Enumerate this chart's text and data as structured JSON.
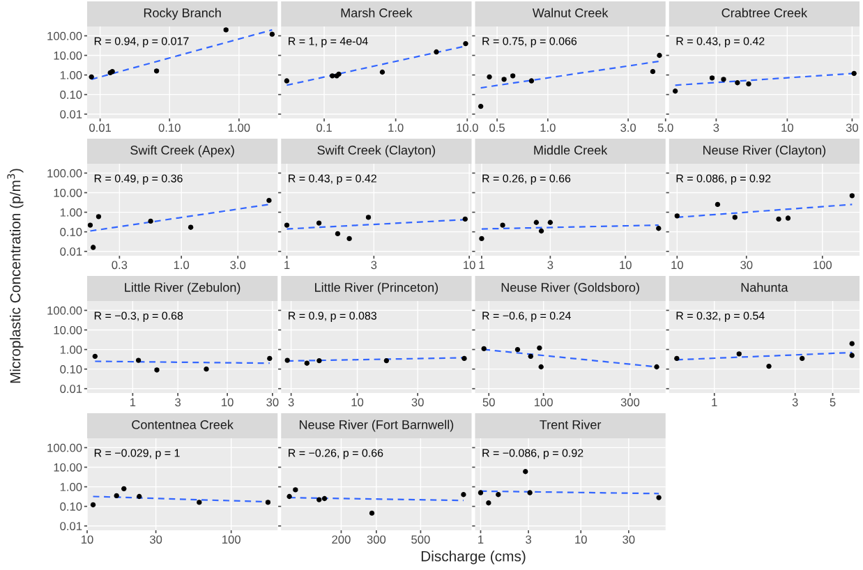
{
  "chart_data": [
    {
      "type": "scatter",
      "title": "Rocky Branch",
      "ylabel": "Microplastic Concentration (p/m$^{3}$)",
      "annotations": [
        "R = 0.94, p = 0.017"
      ],
      "log": "xy",
      "grid": true,
      "xlim": [
        0.0065,
        3.6
      ],
      "xticks": [
        {
          "value": 0.01,
          "label": "0.01"
        },
        {
          "value": 0.1,
          "label": "0.10"
        },
        {
          "value": 1,
          "label": "1.00"
        }
      ],
      "ylim": [
        0.006,
        300
      ],
      "yticks": [
        {
          "value": 0.01,
          "label": "0.01"
        },
        {
          "value": 0.1,
          "label": "0.10"
        },
        {
          "value": 1,
          "label": "1.00"
        },
        {
          "value": 10,
          "label": "10.00"
        },
        {
          "value": 100,
          "label": "100.00"
        }
      ],
      "series": [
        {
          "type": "scatter",
          "color": "#000000",
          "marker": "circle",
          "x": [
            0.0075,
            0.014,
            0.015,
            0.065,
            0.65,
            3.0
          ],
          "values": [
            0.8,
            1.3,
            1.5,
            1.6,
            200,
            120
          ]
        },
        {
          "type": "line",
          "color": "#3366ff",
          "line_style": "dashed",
          "x": [
            0.0075,
            3.0
          ],
          "values": [
            0.6,
            200
          ]
        }
      ]
    },
    {
      "type": "scatter",
      "title": "Marsh Creek",
      "annotations": [
        "R = 1, p = 4e-04"
      ],
      "log": "xy",
      "grid": true,
      "tick_labels": "x",
      "xlim": [
        0.025,
        11.5
      ],
      "xticks": [
        {
          "value": 0.1,
          "label": "0.1"
        },
        {
          "value": 1,
          "label": "1.0"
        },
        {
          "value": 10,
          "label": "10.0"
        }
      ],
      "ylim": [
        0.006,
        300
      ],
      "yticks": [
        0.01,
        0.1,
        1,
        10,
        100
      ],
      "series": [
        {
          "type": "scatter",
          "color": "#000000",
          "marker": "circle",
          "x": [
            0.03,
            0.13,
            0.15,
            0.16,
            0.65,
            3.7,
            9.5
          ],
          "values": [
            0.5,
            0.9,
            0.9,
            1.1,
            1.4,
            15,
            40
          ]
        },
        {
          "type": "line",
          "color": "#3366ff",
          "line_style": "dashed",
          "x": [
            0.03,
            9.5
          ],
          "values": [
            0.3,
            30
          ]
        }
      ]
    },
    {
      "type": "scatter",
      "title": "Walnut Creek",
      "annotations": [
        "R = 0.75, p = 0.066"
      ],
      "log": "xy",
      "grid": true,
      "tick_labels": "x",
      "xlim": [
        0.37,
        5.0
      ],
      "xticks": [
        {
          "value": 0.5,
          "label": "0.5"
        },
        {
          "value": 1,
          "label": "1.0"
        },
        {
          "value": 3,
          "label": "3.0"
        },
        {
          "value": 5,
          "label": "5.0"
        }
      ],
      "ylim": [
        0.006,
        300
      ],
      "yticks": [
        0.01,
        0.1,
        1,
        10,
        100
      ],
      "series": [
        {
          "type": "scatter",
          "color": "#000000",
          "marker": "circle",
          "x": [
            0.4,
            0.45,
            0.55,
            0.62,
            0.8,
            4.2,
            4.6
          ],
          "values": [
            0.025,
            0.8,
            0.6,
            0.9,
            0.5,
            1.5,
            10
          ]
        },
        {
          "type": "line",
          "color": "#3366ff",
          "line_style": "dashed",
          "x": [
            0.4,
            4.6
          ],
          "values": [
            0.22,
            5
          ]
        }
      ]
    },
    {
      "type": "scatter",
      "title": "Crabtree Creek",
      "annotations": [
        "R = 0.43, p = 0.42"
      ],
      "log": "xy",
      "grid": true,
      "tick_labels": "x",
      "xlim": [
        1.35,
        34
      ],
      "xticks": [
        3,
        10,
        30
      ],
      "ylim": [
        0.006,
        300
      ],
      "yticks": [
        0.01,
        0.1,
        1,
        10,
        100
      ],
      "series": [
        {
          "type": "scatter",
          "color": "#000000",
          "marker": "circle",
          "x": [
            1.5,
            2.8,
            3.4,
            4.3,
            5.2,
            31
          ],
          "values": [
            0.15,
            0.7,
            0.6,
            0.4,
            0.35,
            1.2
          ]
        },
        {
          "type": "line",
          "color": "#3366ff",
          "line_style": "dashed",
          "x": [
            1.5,
            31
          ],
          "values": [
            0.3,
            1.2
          ]
        }
      ]
    },
    {
      "type": "scatter",
      "title": "Swift Creek (Apex)",
      "annotations": [
        "R = 0.49, p = 0.36"
      ],
      "log": "xy",
      "grid": true,
      "xlim": [
        0.16,
        6.5
      ],
      "xticks": [
        {
          "value": 0.3,
          "label": "0.3"
        },
        {
          "value": 1,
          "label": "1.0"
        },
        {
          "value": 3,
          "label": "3.0"
        }
      ],
      "ylim": [
        0.006,
        300
      ],
      "yticks": [
        {
          "value": 0.01,
          "label": "0.01"
        },
        {
          "value": 0.1,
          "label": "0.10"
        },
        {
          "value": 1,
          "label": "1.00"
        },
        {
          "value": 10,
          "label": "10.00"
        },
        {
          "value": 100,
          "label": "100.00"
        }
      ],
      "series": [
        {
          "type": "scatter",
          "color": "#000000",
          "marker": "circle",
          "x": [
            0.17,
            0.18,
            0.2,
            0.55,
            1.2,
            5.5
          ],
          "values": [
            0.22,
            0.016,
            0.6,
            0.35,
            0.17,
            4
          ]
        },
        {
          "type": "line",
          "color": "#3366ff",
          "line_style": "dashed",
          "x": [
            0.17,
            5.5
          ],
          "values": [
            0.11,
            2.5
          ]
        }
      ]
    },
    {
      "type": "scatter",
      "title": "Swift Creek (Clayton)",
      "annotations": [
        "R = 0.43, p = 0.42"
      ],
      "log": "xy",
      "grid": true,
      "tick_labels": "x",
      "xlim": [
        0.93,
        10.3
      ],
      "xticks": [
        1,
        3,
        10
      ],
      "ylim": [
        0.006,
        300
      ],
      "yticks": [
        0.01,
        0.1,
        1,
        10,
        100
      ],
      "series": [
        {
          "type": "scatter",
          "color": "#000000",
          "marker": "circle",
          "x": [
            1.0,
            1.5,
            1.9,
            2.2,
            2.8,
            9.5
          ],
          "values": [
            0.22,
            0.28,
            0.08,
            0.045,
            0.55,
            0.45
          ]
        },
        {
          "type": "line",
          "color": "#3366ff",
          "line_style": "dashed",
          "x": [
            1.0,
            9.5
          ],
          "values": [
            0.14,
            0.42
          ]
        }
      ]
    },
    {
      "type": "scatter",
      "title": "Middle Creek",
      "annotations": [
        "R = 0.26, p = 0.66"
      ],
      "log": "xy",
      "grid": true,
      "tick_labels": "x",
      "xlim": [
        0.9,
        19
      ],
      "xticks": [
        1,
        3,
        10
      ],
      "ylim": [
        0.006,
        300
      ],
      "yticks": [
        0.01,
        0.1,
        1,
        10,
        100
      ],
      "series": [
        {
          "type": "scatter",
          "color": "#000000",
          "marker": "circle",
          "x": [
            1.0,
            1.4,
            2.4,
            2.6,
            3.0,
            17
          ],
          "values": [
            0.045,
            0.22,
            0.3,
            0.11,
            0.3,
            0.15
          ]
        },
        {
          "type": "line",
          "color": "#3366ff",
          "line_style": "dashed",
          "x": [
            1.0,
            17
          ],
          "values": [
            0.14,
            0.22
          ]
        }
      ]
    },
    {
      "type": "scatter",
      "title": "Neuse River (Clayton)",
      "annotations": [
        "R = 0.086, p = 0.92"
      ],
      "log": "xy",
      "grid": true,
      "tick_labels": "x",
      "xlim": [
        8.8,
        180
      ],
      "xticks": [
        10,
        30,
        100
      ],
      "ylim": [
        0.006,
        300
      ],
      "yticks": [
        0.01,
        0.1,
        1,
        10,
        100
      ],
      "series": [
        {
          "type": "scatter",
          "color": "#000000",
          "marker": "circle",
          "x": [
            10,
            19,
            25,
            50,
            58,
            160
          ],
          "values": [
            0.65,
            2.5,
            0.55,
            0.45,
            0.5,
            7
          ]
        },
        {
          "type": "line",
          "color": "#3366ff",
          "line_style": "dashed",
          "x": [
            10,
            160
          ],
          "values": [
            0.55,
            2.5
          ]
        }
      ]
    },
    {
      "type": "scatter",
      "title": "Little River (Zebulon)",
      "annotations": [
        "R = −0.3, p = 0.68"
      ],
      "log": "xy",
      "grid": true,
      "xlim": [
        0.33,
        34
      ],
      "xticks": [
        1,
        3,
        10,
        30
      ],
      "ylim": [
        0.006,
        300
      ],
      "yticks": [
        {
          "value": 0.01,
          "label": "0.01"
        },
        {
          "value": 0.1,
          "label": "0.10"
        },
        {
          "value": 1,
          "label": "1.00"
        },
        {
          "value": 10,
          "label": "10.00"
        },
        {
          "value": 100,
          "label": "100.00"
        }
      ],
      "series": [
        {
          "type": "scatter",
          "color": "#000000",
          "marker": "circle",
          "x": [
            0.4,
            1.15,
            1.8,
            6,
            28
          ],
          "values": [
            0.45,
            0.28,
            0.09,
            0.1,
            0.35
          ]
        },
        {
          "type": "line",
          "color": "#3366ff",
          "line_style": "dashed",
          "x": [
            0.4,
            28
          ],
          "values": [
            0.25,
            0.2
          ]
        }
      ]
    },
    {
      "type": "scatter",
      "title": "Little River (Princeton)",
      "annotations": [
        "R = 0.9, p = 0.083"
      ],
      "log": "xy",
      "grid": true,
      "tick_labels": "x",
      "xlim": [
        2.5,
        80
      ],
      "xticks": [
        3,
        10,
        30
      ],
      "ylim": [
        0.006,
        300
      ],
      "yticks": [
        0.01,
        0.1,
        1,
        10,
        100
      ],
      "series": [
        {
          "type": "scatter",
          "color": "#000000",
          "marker": "circle",
          "x": [
            2.8,
            4,
            5,
            17,
            70
          ],
          "values": [
            0.28,
            0.2,
            0.27,
            0.27,
            0.35
          ]
        },
        {
          "type": "line",
          "color": "#3366ff",
          "line_style": "dashed",
          "x": [
            2.8,
            70
          ],
          "values": [
            0.26,
            0.38
          ]
        }
      ]
    },
    {
      "type": "scatter",
      "title": "Neuse River (Goldsboro)",
      "annotations": [
        "R = −0.6, p = 0.24"
      ],
      "log": "xy",
      "grid": true,
      "tick_labels": "x",
      "xlim": [
        42,
        470
      ],
      "xticks": [
        50,
        100,
        300
      ],
      "ylim": [
        0.006,
        300
      ],
      "yticks": [
        0.01,
        0.1,
        1,
        10,
        100
      ],
      "series": [
        {
          "type": "scatter",
          "color": "#000000",
          "marker": "circle",
          "x": [
            47,
            72,
            85,
            95,
            97,
            420
          ],
          "values": [
            1.1,
            1.0,
            0.45,
            1.2,
            0.13,
            0.13
          ]
        },
        {
          "type": "line",
          "color": "#3366ff",
          "line_style": "dashed",
          "x": [
            47,
            420
          ],
          "values": [
            1.0,
            0.13
          ]
        }
      ]
    },
    {
      "type": "scatter",
      "title": "Nahunta",
      "annotations": [
        "R = 0.32, p = 0.54"
      ],
      "log": "xy",
      "grid": true,
      "tick_labels": "x",
      "xlim": [
        0.54,
        7.2
      ],
      "xticks": [
        1,
        3,
        5
      ],
      "ylim": [
        0.006,
        300
      ],
      "yticks": [
        0.01,
        0.1,
        1,
        10,
        100
      ],
      "series": [
        {
          "type": "scatter",
          "color": "#000000",
          "marker": "circle",
          "x": [
            0.6,
            1.4,
            2.1,
            3.3,
            6.5,
            6.5
          ],
          "values": [
            0.35,
            0.6,
            0.14,
            0.35,
            0.5,
            2.0
          ]
        },
        {
          "type": "line",
          "color": "#3366ff",
          "line_style": "dashed",
          "x": [
            0.6,
            6.5
          ],
          "values": [
            0.3,
            0.7
          ]
        }
      ]
    },
    {
      "type": "scatter",
      "title": "Contentnea Creek",
      "annotations": [
        "R = −0.029, p = 1"
      ],
      "log": "xy",
      "grid": true,
      "xlim": [
        10,
        210
      ],
      "xticks": [
        10,
        30,
        100
      ],
      "ylim": [
        0.006,
        300
      ],
      "yticks": [
        {
          "value": 0.01,
          "label": "0.01"
        },
        {
          "value": 0.1,
          "label": "0.10"
        },
        {
          "value": 1,
          "label": "1.00"
        },
        {
          "value": 10,
          "label": "10.00"
        },
        {
          "value": 100,
          "label": "100.00"
        }
      ],
      "series": [
        {
          "type": "scatter",
          "color": "#000000",
          "marker": "circle",
          "x": [
            11,
            16,
            18,
            23,
            60,
            180
          ],
          "values": [
            0.12,
            0.35,
            0.8,
            0.32,
            0.16,
            0.16
          ]
        },
        {
          "type": "line",
          "color": "#3366ff",
          "line_style": "dashed",
          "x": [
            11,
            180
          ],
          "values": [
            0.32,
            0.17
          ]
        }
      ]
    },
    {
      "type": "scatter",
      "title": "Neuse River (Fort Barnwell)",
      "xlabel": "Discharge (cms)",
      "annotations": [
        "R = −0.26, p = 0.66"
      ],
      "log": "xy",
      "grid": true,
      "tick_labels": "x",
      "xlim": [
        100,
        900
      ],
      "xticks": [
        200,
        300,
        500
      ],
      "ylim": [
        0.006,
        300
      ],
      "yticks": [
        0.01,
        0.1,
        1,
        10,
        100
      ],
      "series": [
        {
          "type": "scatter",
          "color": "#000000",
          "marker": "circle",
          "x": [
            110,
            118,
            155,
            165,
            285,
            820
          ],
          "values": [
            0.32,
            0.7,
            0.22,
            0.25,
            0.045,
            0.4
          ]
        },
        {
          "type": "line",
          "color": "#3366ff",
          "line_style": "dashed",
          "x": [
            110,
            820
          ],
          "values": [
            0.28,
            0.2
          ]
        }
      ]
    },
    {
      "type": "scatter",
      "title": "Trent River",
      "annotations": [
        "R = −0.086, p = 0.92"
      ],
      "log": "xy",
      "grid": true,
      "tick_labels": "x",
      "xlim": [
        0.88,
        70
      ],
      "xticks": [
        1,
        3,
        10,
        30
      ],
      "ylim": [
        0.006,
        300
      ],
      "yticks": [
        0.01,
        0.1,
        1,
        10,
        100
      ],
      "series": [
        {
          "type": "scatter",
          "color": "#000000",
          "marker": "circle",
          "x": [
            1.0,
            1.2,
            1.5,
            2.8,
            3.1,
            60
          ],
          "values": [
            0.5,
            0.15,
            0.4,
            6,
            0.5,
            0.28
          ]
        },
        {
          "type": "line",
          "color": "#3366ff",
          "line_style": "dashed",
          "x": [
            1.0,
            60
          ],
          "values": [
            0.6,
            0.45
          ]
        }
      ]
    }
  ]
}
